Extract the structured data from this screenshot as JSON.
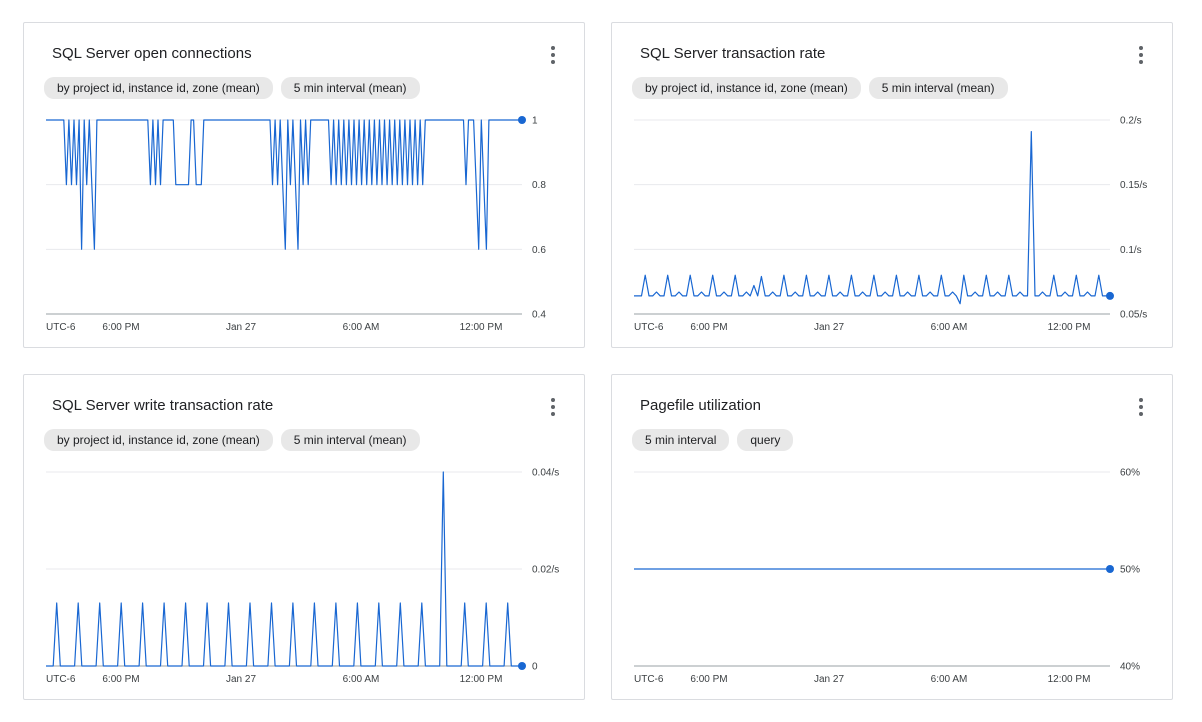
{
  "cards": [
    {
      "title": "SQL Server open connections",
      "chips": [
        "by project id, instance id, zone (mean)",
        "5 min interval (mean)"
      ],
      "menu_icon": "more-vert-icon"
    },
    {
      "title": "SQL Server transaction rate",
      "chips": [
        "by project id, instance id, zone (mean)",
        "5 min interval (mean)"
      ],
      "menu_icon": "more-vert-icon"
    },
    {
      "title": "SQL Server write transaction rate",
      "chips": [
        "by project id, instance id, zone (mean)",
        "5 min interval (mean)"
      ],
      "menu_icon": "more-vert-icon"
    },
    {
      "title": "Pagefile utilization",
      "chips": [
        "5 min interval",
        "query"
      ],
      "menu_icon": "more-vert-icon"
    }
  ],
  "colors": {
    "line": "#1967d2",
    "grid": "#e8eaed",
    "axis": "#9aa0a6",
    "chip_bg": "#e8e8e8"
  },
  "chart_data": [
    {
      "type": "line",
      "title": "SQL Server open connections",
      "xlabel": "",
      "ylabel": "",
      "x_ticks": [
        "UTC-6",
        "6:00 PM",
        "Jan 27",
        "6:00 AM",
        "12:00 PM"
      ],
      "y_ticks": [
        "1",
        "0.8",
        "0.6",
        "0.4"
      ],
      "ylim": [
        0.4,
        1
      ],
      "grid": true,
      "series": [
        {
          "values": [
            1,
            1,
            1,
            1,
            1,
            1,
            1,
            1,
            0.8,
            1,
            0.8,
            1,
            0.8,
            1,
            0.6,
            1,
            0.8,
            1,
            0.8,
            0.6,
            1,
            1,
            1,
            1,
            1,
            1,
            1,
            1,
            1,
            1,
            1,
            1,
            1,
            1,
            1,
            1,
            1,
            1,
            1,
            1,
            1,
            0.8,
            1,
            0.8,
            1,
            0.8,
            1,
            1,
            1,
            1,
            1,
            0.8,
            0.8,
            0.8,
            0.8,
            0.8,
            0.8,
            1,
            1,
            0.8,
            0.8,
            0.8,
            1,
            1,
            1,
            1,
            1,
            1,
            1,
            1,
            1,
            1,
            1,
            1,
            1,
            1,
            1,
            1,
            1,
            1,
            1,
            1,
            1,
            1,
            1,
            1,
            1,
            1,
            1,
            0.8,
            1,
            0.8,
            1,
            0.8,
            0.6,
            1,
            0.8,
            1,
            0.8,
            0.6,
            1,
            0.8,
            1,
            0.8,
            1,
            1,
            1,
            1,
            1,
            1,
            1,
            1,
            0.8,
            1,
            0.8,
            1,
            0.8,
            1,
            0.8,
            1,
            0.8,
            1,
            0.8,
            1,
            0.8,
            1,
            0.8,
            1,
            0.8,
            1,
            0.8,
            1,
            0.8,
            1,
            0.8,
            1,
            0.8,
            1,
            0.8,
            1,
            0.8,
            1,
            0.8,
            1,
            0.8,
            1,
            0.8,
            1,
            0.8,
            1,
            1,
            1,
            1,
            1,
            1,
            1,
            1,
            1,
            1,
            1,
            1,
            1,
            1,
            1,
            1,
            0.8,
            1,
            1,
            1,
            0.8,
            0.6,
            1,
            0.8,
            0.6,
            1,
            1,
            1,
            1,
            1,
            1,
            1,
            1,
            1,
            1,
            1,
            1,
            1,
            1
          ]
        }
      ]
    },
    {
      "type": "line",
      "title": "SQL Server transaction rate",
      "xlabel": "",
      "ylabel": "",
      "x_ticks": [
        "UTC-6",
        "6:00 PM",
        "Jan 27",
        "6:00 AM",
        "12:00 PM"
      ],
      "y_ticks": [
        "0.2/s",
        "0.15/s",
        "0.1/s",
        "0.05/s"
      ],
      "ylim": [
        0.05,
        0.2
      ],
      "grid": true,
      "series": [
        {
          "values": [
            0.064,
            0.064,
            0.064,
            0.08,
            0.064,
            0.064,
            0.067,
            0.064,
            0.064,
            0.08,
            0.064,
            0.064,
            0.067,
            0.064,
            0.064,
            0.08,
            0.064,
            0.064,
            0.067,
            0.064,
            0.064,
            0.08,
            0.064,
            0.064,
            0.067,
            0.064,
            0.064,
            0.08,
            0.064,
            0.064,
            0.067,
            0.064,
            0.072,
            0.064,
            0.079,
            0.064,
            0.064,
            0.067,
            0.064,
            0.064,
            0.08,
            0.064,
            0.064,
            0.067,
            0.064,
            0.064,
            0.08,
            0.064,
            0.064,
            0.067,
            0.064,
            0.064,
            0.08,
            0.064,
            0.064,
            0.067,
            0.064,
            0.064,
            0.08,
            0.064,
            0.064,
            0.067,
            0.064,
            0.064,
            0.08,
            0.064,
            0.064,
            0.067,
            0.064,
            0.064,
            0.08,
            0.064,
            0.064,
            0.067,
            0.064,
            0.064,
            0.08,
            0.064,
            0.064,
            0.067,
            0.064,
            0.064,
            0.08,
            0.064,
            0.064,
            0.067,
            0.064,
            0.058,
            0.08,
            0.064,
            0.064,
            0.067,
            0.064,
            0.064,
            0.08,
            0.064,
            0.064,
            0.067,
            0.064,
            0.064,
            0.08,
            0.064,
            0.064,
            0.067,
            0.064,
            0.064,
            0.191,
            0.064,
            0.064,
            0.067,
            0.064,
            0.064,
            0.08,
            0.064,
            0.064,
            0.067,
            0.064,
            0.064,
            0.08,
            0.064,
            0.064,
            0.067,
            0.064,
            0.064,
            0.08,
            0.064,
            0.064,
            0.064
          ]
        }
      ]
    },
    {
      "type": "line",
      "title": "SQL Server write transaction rate",
      "xlabel": "",
      "ylabel": "",
      "x_ticks": [
        "UTC-6",
        "6:00 PM",
        "Jan 27",
        "6:00 AM",
        "12:00 PM"
      ],
      "y_ticks": [
        "0.04/s",
        "0.02/s",
        "0"
      ],
      "ylim": [
        0,
        0.04
      ],
      "grid": true,
      "series": [
        {
          "values": [
            0,
            0,
            0,
            0.013,
            0,
            0,
            0,
            0,
            0,
            0.013,
            0,
            0,
            0,
            0,
            0,
            0.013,
            0,
            0,
            0,
            0,
            0,
            0.013,
            0,
            0,
            0,
            0,
            0,
            0.013,
            0,
            0,
            0,
            0,
            0,
            0.013,
            0,
            0,
            0,
            0,
            0,
            0.013,
            0,
            0,
            0,
            0,
            0,
            0.013,
            0,
            0,
            0,
            0,
            0,
            0.013,
            0,
            0,
            0,
            0,
            0,
            0.013,
            0,
            0,
            0,
            0,
            0,
            0.013,
            0,
            0,
            0,
            0,
            0,
            0.013,
            0,
            0,
            0,
            0,
            0,
            0.013,
            0,
            0,
            0,
            0,
            0,
            0.013,
            0,
            0,
            0,
            0,
            0,
            0.013,
            0,
            0,
            0,
            0,
            0,
            0.013,
            0,
            0,
            0,
            0,
            0,
            0.013,
            0,
            0,
            0,
            0,
            0,
            0.013,
            0,
            0,
            0,
            0,
            0,
            0.04,
            0,
            0,
            0,
            0,
            0,
            0.013,
            0,
            0,
            0,
            0,
            0,
            0.013,
            0,
            0,
            0,
            0,
            0,
            0.013,
            0,
            0,
            0,
            0
          ]
        }
      ]
    },
    {
      "type": "line",
      "title": "Pagefile utilization",
      "xlabel": "",
      "ylabel": "",
      "x_ticks": [
        "UTC-6",
        "6:00 PM",
        "Jan 27",
        "6:00 AM",
        "12:00 PM"
      ],
      "y_ticks": [
        "60%",
        "50%",
        "40%"
      ],
      "ylim": [
        40,
        60
      ],
      "grid": true,
      "series": [
        {
          "values": [
            50,
            50
          ]
        }
      ]
    }
  ]
}
